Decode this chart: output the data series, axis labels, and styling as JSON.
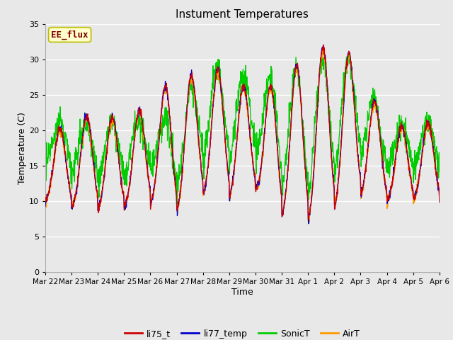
{
  "title": "Instument Temperatures",
  "xlabel": "Time",
  "ylabel": "Temperature (C)",
  "ylim": [
    0,
    35
  ],
  "yticks": [
    0,
    5,
    10,
    15,
    20,
    25,
    30,
    35
  ],
  "fig_bg_color": "#e8e8e8",
  "plot_bg_color": "#e8e8e8",
  "grid_color": "white",
  "annotation_text": "EE_flux",
  "annotation_bg": "#ffffcc",
  "annotation_border": "#bbbb00",
  "annotation_text_color": "#800000",
  "series_colors": {
    "li75_t": "#cc0000",
    "li77_temp": "#0000cc",
    "SonicT": "#00cc00",
    "AirT": "#ff9900"
  },
  "num_days": 15,
  "tick_labels": [
    "Mar 22",
    "Mar 23",
    "Mar 24",
    "Mar 25",
    "Mar 26",
    "Mar 27",
    "Mar 28",
    "Mar 29",
    "Mar 30",
    "Mar 31",
    "Apr 1",
    "Apr 2",
    "Apr 3",
    "Apr 4",
    "Apr 5",
    "Apr 6"
  ],
  "legend_labels": [
    "li75_t",
    "li77_temp",
    "SonicT",
    "AirT"
  ]
}
